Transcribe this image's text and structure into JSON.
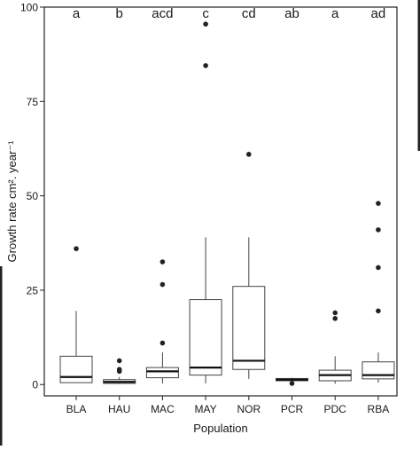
{
  "chart_data": {
    "type": "box",
    "xlabel": "Population",
    "ylabel": "Growth rate cm². year⁻¹",
    "ylim": [
      -3,
      100
    ],
    "yticks": [
      0,
      25,
      50,
      75,
      100
    ],
    "grid": false,
    "legend": "none",
    "categories": [
      "BLA",
      "HAU",
      "MAC",
      "MAY",
      "NOR",
      "PCR",
      "PDC",
      "RBA"
    ],
    "group_letters": [
      "a",
      "b",
      "acd",
      "c",
      "cd",
      "ab",
      "a",
      "ad"
    ],
    "boxes": [
      {
        "category": "BLA",
        "whisker_low": 0.5,
        "q1": 0.5,
        "median": 2.0,
        "q3": 7.5,
        "whisker_high": 19.5,
        "outliers": [
          36.0
        ]
      },
      {
        "category": "HAU",
        "whisker_low": 0.1,
        "q1": 0.3,
        "median": 0.7,
        "q3": 1.3,
        "whisker_high": 2.0,
        "outliers": [
          3.5,
          4.0,
          6.3
        ]
      },
      {
        "category": "MAC",
        "whisker_low": 0.3,
        "q1": 1.8,
        "median": 3.5,
        "q3": 4.5,
        "whisker_high": 8.5,
        "outliers": [
          11.0,
          26.5,
          32.5
        ]
      },
      {
        "category": "MAY",
        "whisker_low": 0.3,
        "q1": 2.5,
        "median": 4.5,
        "q3": 22.5,
        "whisker_high": 39.0,
        "outliers": [
          84.5,
          95.5
        ]
      },
      {
        "category": "NOR",
        "whisker_low": 1.5,
        "q1": 4.0,
        "median": 6.3,
        "q3": 26.0,
        "whisker_high": 39.0,
        "outliers": [
          61.0
        ]
      },
      {
        "category": "PCR",
        "whisker_low": 0.9,
        "q1": 1.0,
        "median": 1.3,
        "q3": 1.6,
        "whisker_high": 1.8,
        "outliers": [
          0.3
        ]
      },
      {
        "category": "PDC",
        "whisker_low": 0.2,
        "q1": 1.0,
        "median": 2.5,
        "q3": 3.8,
        "whisker_high": 7.5,
        "outliers": [
          17.5,
          19.0
        ]
      },
      {
        "category": "RBA",
        "whisker_low": 0.5,
        "q1": 1.5,
        "median": 2.5,
        "q3": 6.0,
        "whisker_high": 8.5,
        "outliers": [
          19.5,
          31.0,
          41.0,
          48.0
        ]
      }
    ]
  }
}
